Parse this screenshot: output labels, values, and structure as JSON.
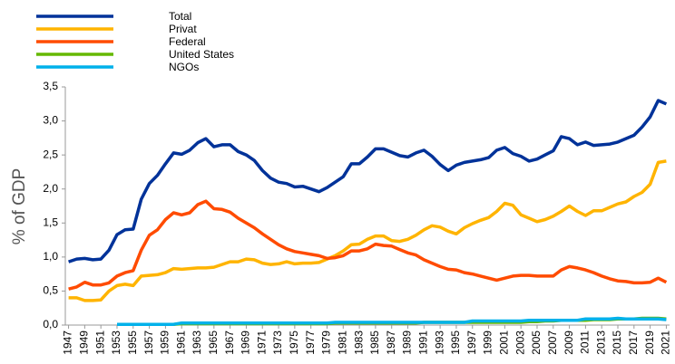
{
  "chart_data": {
    "type": "line",
    "y_label": "% of GDP",
    "x": [
      1947,
      1948,
      1949,
      1950,
      1951,
      1952,
      1953,
      1954,
      1955,
      1956,
      1957,
      1958,
      1959,
      1960,
      1961,
      1962,
      1963,
      1964,
      1965,
      1966,
      1967,
      1968,
      1969,
      1970,
      1971,
      1972,
      1973,
      1974,
      1975,
      1976,
      1977,
      1978,
      1979,
      1980,
      1981,
      1982,
      1983,
      1984,
      1985,
      1986,
      1987,
      1988,
      1989,
      1990,
      1991,
      1992,
      1993,
      1994,
      1995,
      1996,
      1997,
      1998,
      1999,
      2000,
      2001,
      2002,
      2003,
      2004,
      2005,
      2006,
      2007,
      2008,
      2009,
      2010,
      2011,
      2012,
      2013,
      2014,
      2015,
      2016,
      2017,
      2018,
      2019,
      2020,
      2021
    ],
    "series": [
      {
        "name": "Total",
        "color": "#003299",
        "values": [
          0.93,
          0.97,
          0.98,
          0.96,
          0.97,
          1.1,
          1.33,
          1.4,
          1.41,
          1.85,
          2.08,
          2.2,
          2.37,
          2.53,
          2.51,
          2.57,
          2.68,
          2.74,
          2.62,
          2.65,
          2.65,
          2.55,
          2.5,
          2.42,
          2.27,
          2.16,
          2.1,
          2.08,
          2.03,
          2.04,
          2.0,
          1.96,
          2.02,
          2.1,
          2.18,
          2.37,
          2.37,
          2.47,
          2.59,
          2.59,
          2.54,
          2.49,
          2.47,
          2.53,
          2.57,
          2.48,
          2.36,
          2.27,
          2.35,
          2.39,
          2.41,
          2.43,
          2.46,
          2.57,
          2.61,
          2.52,
          2.48,
          2.41,
          2.44,
          2.5,
          2.56,
          2.77,
          2.74,
          2.65,
          2.69,
          2.64,
          2.65,
          2.66,
          2.69,
          2.74,
          2.79,
          2.91,
          3.06,
          3.3,
          3.25
        ]
      },
      {
        "name": "Privat",
        "color": "#ffb400",
        "values": [
          0.4,
          0.4,
          0.36,
          0.36,
          0.37,
          0.5,
          0.58,
          0.6,
          0.58,
          0.72,
          0.73,
          0.74,
          0.77,
          0.83,
          0.82,
          0.83,
          0.84,
          0.84,
          0.85,
          0.89,
          0.93,
          0.93,
          0.97,
          0.96,
          0.91,
          0.89,
          0.9,
          0.93,
          0.9,
          0.91,
          0.91,
          0.92,
          0.97,
          1.02,
          1.09,
          1.18,
          1.19,
          1.26,
          1.31,
          1.31,
          1.24,
          1.23,
          1.26,
          1.32,
          1.4,
          1.46,
          1.44,
          1.38,
          1.34,
          1.43,
          1.49,
          1.54,
          1.58,
          1.67,
          1.79,
          1.76,
          1.62,
          1.57,
          1.52,
          1.55,
          1.6,
          1.67,
          1.75,
          1.67,
          1.61,
          1.68,
          1.68,
          1.73,
          1.78,
          1.81,
          1.89,
          1.95,
          2.07,
          2.39,
          2.41
        ]
      },
      {
        "name": "Federal",
        "color": "#ff4b00",
        "values": [
          0.53,
          0.56,
          0.63,
          0.59,
          0.59,
          0.62,
          0.72,
          0.77,
          0.8,
          1.1,
          1.32,
          1.4,
          1.55,
          1.65,
          1.62,
          1.65,
          1.77,
          1.82,
          1.71,
          1.7,
          1.66,
          1.57,
          1.5,
          1.43,
          1.34,
          1.26,
          1.18,
          1.12,
          1.08,
          1.06,
          1.04,
          1.02,
          0.98,
          0.99,
          1.02,
          1.09,
          1.09,
          1.12,
          1.19,
          1.17,
          1.16,
          1.11,
          1.06,
          1.03,
          0.96,
          0.91,
          0.86,
          0.82,
          0.81,
          0.77,
          0.75,
          0.72,
          0.69,
          0.66,
          0.69,
          0.72,
          0.73,
          0.73,
          0.72,
          0.72,
          0.72,
          0.81,
          0.86,
          0.84,
          0.81,
          0.77,
          0.72,
          0.68,
          0.65,
          0.64,
          0.62,
          0.62,
          0.63,
          0.69,
          0.63
        ]
      },
      {
        "name": "United States",
        "color": "#65b800",
        "values": [
          null,
          null,
          null,
          null,
          null,
          null,
          0.01,
          0.01,
          0.01,
          0.01,
          0.01,
          0.01,
          0.01,
          0.01,
          0.02,
          0.02,
          0.02,
          0.02,
          0.02,
          0.02,
          0.02,
          0.02,
          0.02,
          0.02,
          0.02,
          0.02,
          0.02,
          0.02,
          0.02,
          0.02,
          0.02,
          0.02,
          0.02,
          0.03,
          0.03,
          0.03,
          0.03,
          0.03,
          0.03,
          0.03,
          0.03,
          0.03,
          0.03,
          0.03,
          0.04,
          0.04,
          0.04,
          0.04,
          0.04,
          0.04,
          0.04,
          0.04,
          0.04,
          0.04,
          0.04,
          0.04,
          0.04,
          0.05,
          0.05,
          0.06,
          0.06,
          0.07,
          0.07,
          0.07,
          0.07,
          0.08,
          0.08,
          0.08,
          0.09,
          0.09,
          0.09,
          0.1,
          0.1,
          0.1,
          0.09
        ]
      },
      {
        "name": "NGOs",
        "color": "#00b1ea",
        "values": [
          null,
          null,
          null,
          null,
          null,
          null,
          0.01,
          0.01,
          0.01,
          0.01,
          0.01,
          0.01,
          0.01,
          0.01,
          0.03,
          0.03,
          0.03,
          0.03,
          0.03,
          0.03,
          0.03,
          0.03,
          0.03,
          0.03,
          0.03,
          0.03,
          0.03,
          0.03,
          0.03,
          0.03,
          0.03,
          0.03,
          0.03,
          0.04,
          0.04,
          0.04,
          0.04,
          0.04,
          0.04,
          0.04,
          0.04,
          0.04,
          0.04,
          0.04,
          0.04,
          0.04,
          0.04,
          0.04,
          0.04,
          0.04,
          0.06,
          0.06,
          0.06,
          0.06,
          0.06,
          0.06,
          0.06,
          0.07,
          0.07,
          0.07,
          0.07,
          0.07,
          0.07,
          0.07,
          0.09,
          0.09,
          0.09,
          0.09,
          0.1,
          0.09,
          0.09,
          0.09,
          0.09,
          0.09,
          0.08
        ]
      }
    ],
    "xlim": [
      1946.6,
      2021.4
    ],
    "xticks": [
      1947,
      1949,
      1951,
      1953,
      1955,
      1957,
      1959,
      1961,
      1963,
      1965,
      1967,
      1969,
      1971,
      1973,
      1975,
      1977,
      1979,
      1981,
      1983,
      1985,
      1987,
      1989,
      1991,
      1993,
      1995,
      1997,
      1999,
      2001,
      2003,
      2005,
      2007,
      2009,
      2011,
      2013,
      2015,
      2017,
      2019,
      2021
    ],
    "ylim": [
      0,
      3.5
    ],
    "yticks": [
      {
        "value": 0,
        "label": "0,0"
      },
      {
        "value": 0.5,
        "label": "0,5"
      },
      {
        "value": 1,
        "label": "1,0"
      },
      {
        "value": 1.5,
        "label": "1,5"
      },
      {
        "value": 2,
        "label": "2,0"
      },
      {
        "value": 2.5,
        "label": "2,5"
      },
      {
        "value": 3,
        "label": "3,0"
      },
      {
        "value": 3.5,
        "label": "3,5"
      }
    ],
    "grid": false,
    "legend": "top-left"
  }
}
